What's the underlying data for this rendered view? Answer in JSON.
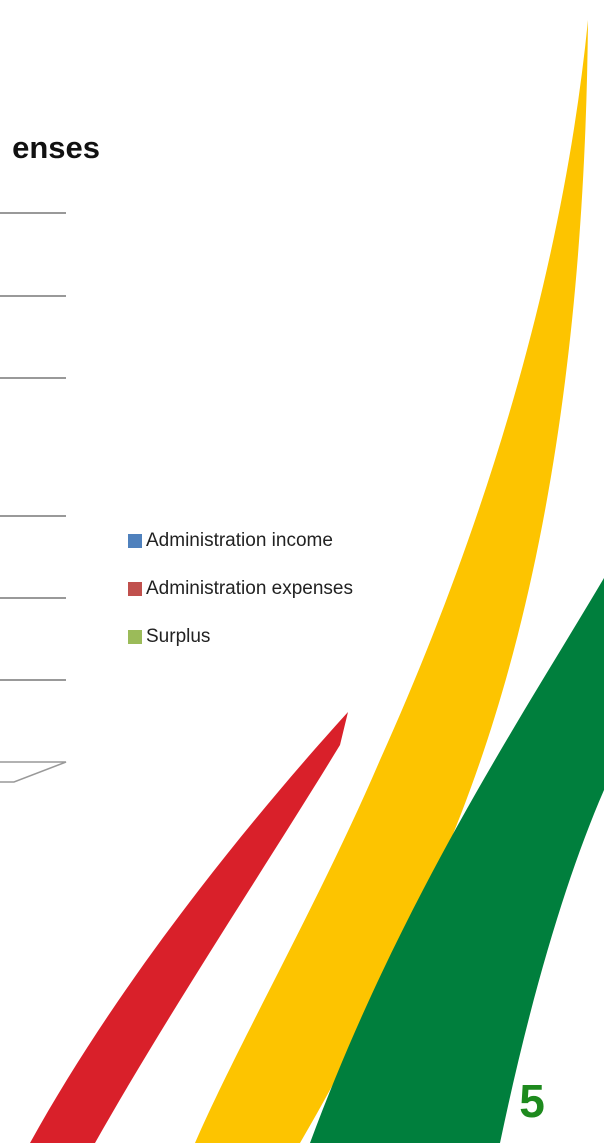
{
  "slide": {
    "title": "enses",
    "legend": [
      {
        "name": "Administration income",
        "color": "#4f81bd"
      },
      {
        "name": "Administration expenses",
        "color": "#c0504d"
      },
      {
        "name": "Surplus",
        "color": "#9bbb59"
      }
    ],
    "page_number": "5"
  }
}
